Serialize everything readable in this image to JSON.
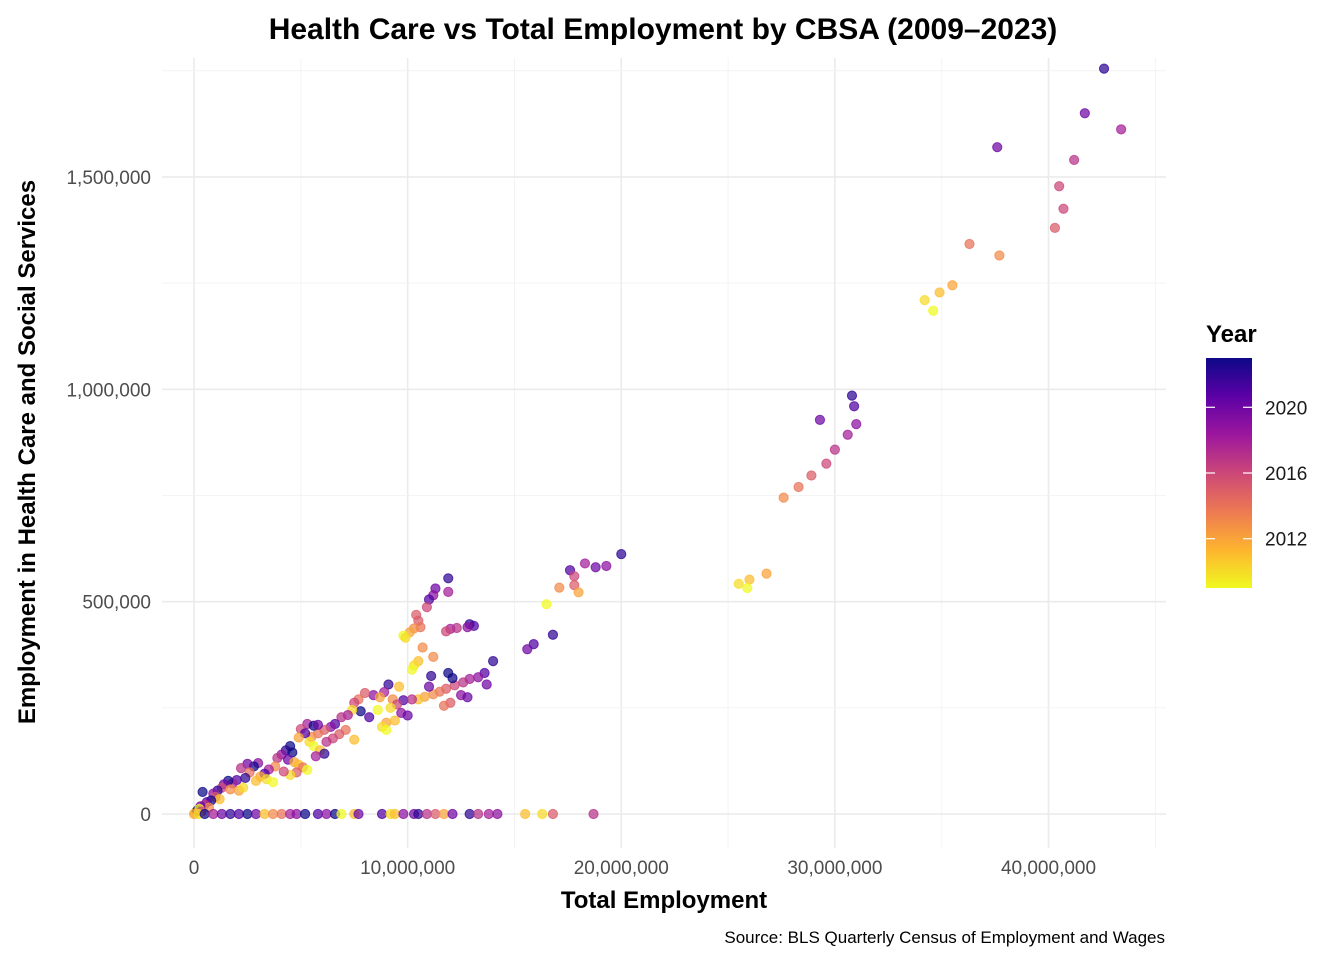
{
  "chart_data": {
    "type": "scatter",
    "title": "Health Care vs Total Employment by CBSA (2009–2023)",
    "xlabel": "Total Employment",
    "ylabel": "Employment in Health Care and Social Services",
    "caption": "Source: BLS Quarterly Census of Employment and Wages",
    "xlim": [
      -1500000,
      45500000
    ],
    "ylim": [
      -80000,
      1780000
    ],
    "x_ticks": [
      0,
      10000000,
      20000000,
      30000000,
      40000000
    ],
    "x_tick_labels": [
      "0",
      "10,000,000",
      "20,000,000",
      "30,000,000",
      "40,000,000"
    ],
    "y_ticks": [
      0,
      500000,
      1000000,
      1500000
    ],
    "y_tick_labels": [
      "0",
      "500,000",
      "1,000,000",
      "1,500,000"
    ],
    "grid": true,
    "color_by": "year",
    "legend": {
      "title": "Year",
      "placement": "right",
      "type": "colorbar",
      "palette": "plasma",
      "range": [
        2009,
        2023
      ],
      "breaks": [
        2012,
        2016,
        2020
      ],
      "break_labels": [
        "2012",
        "2016",
        "2020"
      ],
      "colors_low_to_high": [
        "#f0f921",
        "#fdb42f",
        "#ed7953",
        "#cc4778",
        "#9c179e",
        "#5c01a6",
        "#0d0887"
      ]
    },
    "points": [
      {
        "x": 42600000,
        "y": 1755000,
        "year": 2022
      },
      {
        "x": 41700000,
        "y": 1650000,
        "year": 2020
      },
      {
        "x": 43400000,
        "y": 1612000,
        "year": 2018
      },
      {
        "x": 37600000,
        "y": 1570000,
        "year": 2020
      },
      {
        "x": 41200000,
        "y": 1540000,
        "year": 2017
      },
      {
        "x": 40500000,
        "y": 1478000,
        "year": 2016
      },
      {
        "x": 40700000,
        "y": 1425000,
        "year": 2016
      },
      {
        "x": 40300000,
        "y": 1380000,
        "year": 2015
      },
      {
        "x": 36300000,
        "y": 1342000,
        "year": 2014
      },
      {
        "x": 37700000,
        "y": 1315000,
        "year": 2013
      },
      {
        "x": 35500000,
        "y": 1245000,
        "year": 2012
      },
      {
        "x": 34900000,
        "y": 1228000,
        "year": 2011
      },
      {
        "x": 34200000,
        "y": 1210000,
        "year": 2010
      },
      {
        "x": 34600000,
        "y": 1185000,
        "year": 2009
      },
      {
        "x": 30800000,
        "y": 985000,
        "year": 2022
      },
      {
        "x": 30900000,
        "y": 960000,
        "year": 2021
      },
      {
        "x": 29300000,
        "y": 928000,
        "year": 2020
      },
      {
        "x": 31000000,
        "y": 918000,
        "year": 2019
      },
      {
        "x": 30600000,
        "y": 893000,
        "year": 2018
      },
      {
        "x": 30000000,
        "y": 858000,
        "year": 2017
      },
      {
        "x": 29600000,
        "y": 825000,
        "year": 2016
      },
      {
        "x": 28900000,
        "y": 797000,
        "year": 2015
      },
      {
        "x": 28300000,
        "y": 770000,
        "year": 2014
      },
      {
        "x": 27600000,
        "y": 745000,
        "year": 2013
      },
      {
        "x": 26800000,
        "y": 566000,
        "year": 2012
      },
      {
        "x": 26000000,
        "y": 552000,
        "year": 2011
      },
      {
        "x": 25500000,
        "y": 542000,
        "year": 2010
      },
      {
        "x": 25900000,
        "y": 532000,
        "year": 2009
      },
      {
        "x": 20000000,
        "y": 612000,
        "year": 2022
      },
      {
        "x": 19300000,
        "y": 584000,
        "year": 2019
      },
      {
        "x": 18800000,
        "y": 581000,
        "year": 2020
      },
      {
        "x": 18300000,
        "y": 590000,
        "year": 2018
      },
      {
        "x": 17600000,
        "y": 574000,
        "year": 2021
      },
      {
        "x": 17800000,
        "y": 560000,
        "year": 2016
      },
      {
        "x": 17100000,
        "y": 533000,
        "year": 2013
      },
      {
        "x": 17800000,
        "y": 539000,
        "year": 2015
      },
      {
        "x": 18000000,
        "y": 522000,
        "year": 2012
      },
      {
        "x": 16500000,
        "y": 494000,
        "year": 2009
      },
      {
        "x": 16800000,
        "y": 422000,
        "year": 2022
      },
      {
        "x": 15900000,
        "y": 400000,
        "year": 2021
      },
      {
        "x": 15600000,
        "y": 388000,
        "year": 2020
      },
      {
        "x": 11900000,
        "y": 555000,
        "year": 2022
      },
      {
        "x": 11300000,
        "y": 531000,
        "year": 2020
      },
      {
        "x": 11200000,
        "y": 515000,
        "year": 2019
      },
      {
        "x": 11000000,
        "y": 505000,
        "year": 2021
      },
      {
        "x": 11900000,
        "y": 523000,
        "year": 2018
      },
      {
        "x": 10900000,
        "y": 487000,
        "year": 2016
      },
      {
        "x": 10400000,
        "y": 469000,
        "year": 2015
      },
      {
        "x": 10500000,
        "y": 455000,
        "year": 2015
      },
      {
        "x": 10600000,
        "y": 440000,
        "year": 2014
      },
      {
        "x": 10300000,
        "y": 437000,
        "year": 2013
      },
      {
        "x": 10100000,
        "y": 428000,
        "year": 2012
      },
      {
        "x": 9800000,
        "y": 420000,
        "year": 2009
      },
      {
        "x": 9900000,
        "y": 415000,
        "year": 2010
      },
      {
        "x": 10700000,
        "y": 392000,
        "year": 2013
      },
      {
        "x": 11200000,
        "y": 370000,
        "year": 2013
      },
      {
        "x": 10500000,
        "y": 360000,
        "year": 2011
      },
      {
        "x": 10300000,
        "y": 350000,
        "year": 2010
      },
      {
        "x": 10200000,
        "y": 340000,
        "year": 2009
      },
      {
        "x": 12000000,
        "y": 436000,
        "year": 2018
      },
      {
        "x": 12300000,
        "y": 438000,
        "year": 2017
      },
      {
        "x": 12900000,
        "y": 447000,
        "year": 2022
      },
      {
        "x": 13100000,
        "y": 443000,
        "year": 2021
      },
      {
        "x": 12800000,
        "y": 440000,
        "year": 2019
      },
      {
        "x": 11800000,
        "y": 430000,
        "year": 2016
      },
      {
        "x": 14000000,
        "y": 360000,
        "year": 2022
      },
      {
        "x": 13600000,
        "y": 332000,
        "year": 2021
      },
      {
        "x": 13700000,
        "y": 305000,
        "year": 2020
      },
      {
        "x": 13300000,
        "y": 322000,
        "year": 2019
      },
      {
        "x": 12900000,
        "y": 318000,
        "year": 2018
      },
      {
        "x": 12600000,
        "y": 310000,
        "year": 2017
      },
      {
        "x": 12200000,
        "y": 303000,
        "year": 2016
      },
      {
        "x": 11800000,
        "y": 295000,
        "year": 2015
      },
      {
        "x": 11500000,
        "y": 288000,
        "year": 2014
      },
      {
        "x": 11200000,
        "y": 282000,
        "year": 2013
      },
      {
        "x": 10800000,
        "y": 276000,
        "year": 2012
      },
      {
        "x": 10500000,
        "y": 270000,
        "year": 2011
      },
      {
        "x": 11900000,
        "y": 332000,
        "year": 2023
      },
      {
        "x": 11100000,
        "y": 325000,
        "year": 2022
      },
      {
        "x": 12100000,
        "y": 320000,
        "year": 2023
      },
      {
        "x": 11000000,
        "y": 300000,
        "year": 2020
      },
      {
        "x": 12500000,
        "y": 280000,
        "year": 2019
      },
      {
        "x": 12800000,
        "y": 275000,
        "year": 2020
      },
      {
        "x": 12000000,
        "y": 262000,
        "year": 2015
      },
      {
        "x": 11700000,
        "y": 255000,
        "year": 2014
      },
      {
        "x": 9100000,
        "y": 305000,
        "year": 2022
      },
      {
        "x": 9600000,
        "y": 300000,
        "year": 2011
      },
      {
        "x": 8900000,
        "y": 287000,
        "year": 2018
      },
      {
        "x": 8400000,
        "y": 280000,
        "year": 2019
      },
      {
        "x": 8000000,
        "y": 285000,
        "year": 2015
      },
      {
        "x": 7700000,
        "y": 270000,
        "year": 2014
      },
      {
        "x": 7500000,
        "y": 262000,
        "year": 2016
      },
      {
        "x": 8700000,
        "y": 275000,
        "year": 2012
      },
      {
        "x": 9300000,
        "y": 270000,
        "year": 2013
      },
      {
        "x": 9800000,
        "y": 268000,
        "year": 2021
      },
      {
        "x": 10200000,
        "y": 270000,
        "year": 2017
      },
      {
        "x": 9500000,
        "y": 258000,
        "year": 2016
      },
      {
        "x": 9200000,
        "y": 250000,
        "year": 2010
      },
      {
        "x": 8600000,
        "y": 245000,
        "year": 2009
      },
      {
        "x": 7800000,
        "y": 242000,
        "year": 2023
      },
      {
        "x": 7400000,
        "y": 245000,
        "year": 2010
      },
      {
        "x": 7200000,
        "y": 233000,
        "year": 2018
      },
      {
        "x": 6900000,
        "y": 228000,
        "year": 2017
      },
      {
        "x": 8200000,
        "y": 228000,
        "year": 2021
      },
      {
        "x": 9700000,
        "y": 238000,
        "year": 2019
      },
      {
        "x": 10000000,
        "y": 232000,
        "year": 2020
      },
      {
        "x": 9000000,
        "y": 215000,
        "year": 2012
      },
      {
        "x": 9400000,
        "y": 220000,
        "year": 2011
      },
      {
        "x": 8800000,
        "y": 205000,
        "year": 2010
      },
      {
        "x": 9000000,
        "y": 198000,
        "year": 2009
      },
      {
        "x": 6600000,
        "y": 212000,
        "year": 2021
      },
      {
        "x": 6400000,
        "y": 205000,
        "year": 2019
      },
      {
        "x": 6100000,
        "y": 198000,
        "year": 2015
      },
      {
        "x": 5800000,
        "y": 190000,
        "year": 2014
      },
      {
        "x": 5500000,
        "y": 182000,
        "year": 2013
      },
      {
        "x": 7100000,
        "y": 198000,
        "year": 2014
      },
      {
        "x": 6800000,
        "y": 188000,
        "year": 2015
      },
      {
        "x": 6500000,
        "y": 178000,
        "year": 2016
      },
      {
        "x": 6200000,
        "y": 170000,
        "year": 2017
      },
      {
        "x": 7500000,
        "y": 175000,
        "year": 2011
      },
      {
        "x": 5300000,
        "y": 212000,
        "year": 2018
      },
      {
        "x": 5600000,
        "y": 208000,
        "year": 2023
      },
      {
        "x": 5800000,
        "y": 210000,
        "year": 2020
      },
      {
        "x": 5000000,
        "y": 200000,
        "year": 2016
      },
      {
        "x": 5200000,
        "y": 190000,
        "year": 2021
      },
      {
        "x": 4900000,
        "y": 180000,
        "year": 2012
      },
      {
        "x": 5400000,
        "y": 170000,
        "year": 2010
      },
      {
        "x": 5600000,
        "y": 160000,
        "year": 2009
      },
      {
        "x": 5900000,
        "y": 150000,
        "year": 2011
      },
      {
        "x": 6100000,
        "y": 142000,
        "year": 2022
      },
      {
        "x": 5700000,
        "y": 136000,
        "year": 2018
      },
      {
        "x": 4500000,
        "y": 160000,
        "year": 2023
      },
      {
        "x": 4300000,
        "y": 150000,
        "year": 2022
      },
      {
        "x": 4600000,
        "y": 145000,
        "year": 2023
      },
      {
        "x": 4100000,
        "y": 140000,
        "year": 2019
      },
      {
        "x": 3900000,
        "y": 132000,
        "year": 2017
      },
      {
        "x": 4400000,
        "y": 128000,
        "year": 2020
      },
      {
        "x": 4700000,
        "y": 122000,
        "year": 2012
      },
      {
        "x": 4900000,
        "y": 116000,
        "year": 2011
      },
      {
        "x": 5100000,
        "y": 110000,
        "year": 2014
      },
      {
        "x": 5300000,
        "y": 104000,
        "year": 2009
      },
      {
        "x": 4800000,
        "y": 98000,
        "year": 2015
      },
      {
        "x": 4500000,
        "y": 92000,
        "year": 2010
      },
      {
        "x": 4200000,
        "y": 100000,
        "year": 2016
      },
      {
        "x": 3800000,
        "y": 112000,
        "year": 2013
      },
      {
        "x": 3500000,
        "y": 105000,
        "year": 2018
      },
      {
        "x": 3300000,
        "y": 95000,
        "year": 2021
      },
      {
        "x": 3000000,
        "y": 120000,
        "year": 2019
      },
      {
        "x": 2800000,
        "y": 112000,
        "year": 2023
      },
      {
        "x": 2500000,
        "y": 118000,
        "year": 2020
      },
      {
        "x": 2200000,
        "y": 108000,
        "year": 2017
      },
      {
        "x": 2600000,
        "y": 98000,
        "year": 2014
      },
      {
        "x": 3100000,
        "y": 88000,
        "year": 2012
      },
      {
        "x": 3400000,
        "y": 82000,
        "year": 2010
      },
      {
        "x": 2900000,
        "y": 78000,
        "year": 2011
      },
      {
        "x": 3700000,
        "y": 75000,
        "year": 2009
      },
      {
        "x": 2400000,
        "y": 85000,
        "year": 2022
      },
      {
        "x": 2000000,
        "y": 80000,
        "year": 2021
      },
      {
        "x": 1800000,
        "y": 72000,
        "year": 2018
      },
      {
        "x": 1600000,
        "y": 78000,
        "year": 2023
      },
      {
        "x": 1400000,
        "y": 70000,
        "year": 2020
      },
      {
        "x": 1300000,
        "y": 62000,
        "year": 2016
      },
      {
        "x": 1700000,
        "y": 58000,
        "year": 2013
      },
      {
        "x": 2100000,
        "y": 55000,
        "year": 2012
      },
      {
        "x": 2300000,
        "y": 62000,
        "year": 2010
      },
      {
        "x": 1100000,
        "y": 55000,
        "year": 2022
      },
      {
        "x": 900000,
        "y": 48000,
        "year": 2019
      },
      {
        "x": 1000000,
        "y": 40000,
        "year": 2015
      },
      {
        "x": 1200000,
        "y": 35000,
        "year": 2011
      },
      {
        "x": 800000,
        "y": 32000,
        "year": 2023
      },
      {
        "x": 600000,
        "y": 28000,
        "year": 2021
      },
      {
        "x": 400000,
        "y": 52000,
        "year": 2023
      },
      {
        "x": 500000,
        "y": 22000,
        "year": 2017
      },
      {
        "x": 700000,
        "y": 15000,
        "year": 2013
      },
      {
        "x": 300000,
        "y": 18000,
        "year": 2020
      },
      {
        "x": 200000,
        "y": 10000,
        "year": 2018
      },
      {
        "x": 100000,
        "y": 5000,
        "year": 2014
      },
      {
        "x": 50000,
        "y": 3000,
        "year": 2010
      },
      {
        "x": 150000,
        "y": 8000,
        "year": 2023
      },
      {
        "x": 250000,
        "y": 12000,
        "year": 2009
      },
      {
        "x": 350000,
        "y": 6000,
        "year": 2016
      },
      {
        "x": 0,
        "y": 0,
        "year": 2012
      },
      {
        "x": 200000,
        "y": 0,
        "year": 2010
      },
      {
        "x": 500000,
        "y": 0,
        "year": 2023
      },
      {
        "x": 900000,
        "y": 0,
        "year": 2018
      },
      {
        "x": 1300000,
        "y": 0,
        "year": 2020
      },
      {
        "x": 1700000,
        "y": 0,
        "year": 2022
      },
      {
        "x": 2100000,
        "y": 0,
        "year": 2021
      },
      {
        "x": 2500000,
        "y": 0,
        "year": 2023
      },
      {
        "x": 2900000,
        "y": 0,
        "year": 2020
      },
      {
        "x": 3300000,
        "y": 0,
        "year": 2011
      },
      {
        "x": 3700000,
        "y": 0,
        "year": 2013
      },
      {
        "x": 4100000,
        "y": 0,
        "year": 2014
      },
      {
        "x": 4500000,
        "y": 0,
        "year": 2018
      },
      {
        "x": 4800000,
        "y": 0,
        "year": 2019
      },
      {
        "x": 5200000,
        "y": 0,
        "year": 2023
      },
      {
        "x": 5800000,
        "y": 0,
        "year": 2021
      },
      {
        "x": 6200000,
        "y": 0,
        "year": 2019
      },
      {
        "x": 6600000,
        "y": 0,
        "year": 2023
      },
      {
        "x": 6900000,
        "y": 0,
        "year": 2009
      },
      {
        "x": 7500000,
        "y": 0,
        "year": 2011
      },
      {
        "x": 7700000,
        "y": 0,
        "year": 2020
      },
      {
        "x": 8800000,
        "y": 0,
        "year": 2021
      },
      {
        "x": 9200000,
        "y": 0,
        "year": 2010
      },
      {
        "x": 9400000,
        "y": 0,
        "year": 2011
      },
      {
        "x": 9800000,
        "y": 0,
        "year": 2019
      },
      {
        "x": 10300000,
        "y": 0,
        "year": 2020
      },
      {
        "x": 10500000,
        "y": 0,
        "year": 2022
      },
      {
        "x": 10900000,
        "y": 0,
        "year": 2017
      },
      {
        "x": 11300000,
        "y": 0,
        "year": 2015
      },
      {
        "x": 11700000,
        "y": 0,
        "year": 2012
      },
      {
        "x": 12100000,
        "y": 0,
        "year": 2020
      },
      {
        "x": 12900000,
        "y": 0,
        "year": 2022
      },
      {
        "x": 13300000,
        "y": 0,
        "year": 2017
      },
      {
        "x": 13800000,
        "y": 0,
        "year": 2018
      },
      {
        "x": 14200000,
        "y": 0,
        "year": 2019
      },
      {
        "x": 15500000,
        "y": 0,
        "year": 2011
      },
      {
        "x": 16300000,
        "y": 0,
        "year": 2010
      },
      {
        "x": 16800000,
        "y": 0,
        "year": 2015
      },
      {
        "x": 18700000,
        "y": 0,
        "year": 2017
      }
    ]
  }
}
